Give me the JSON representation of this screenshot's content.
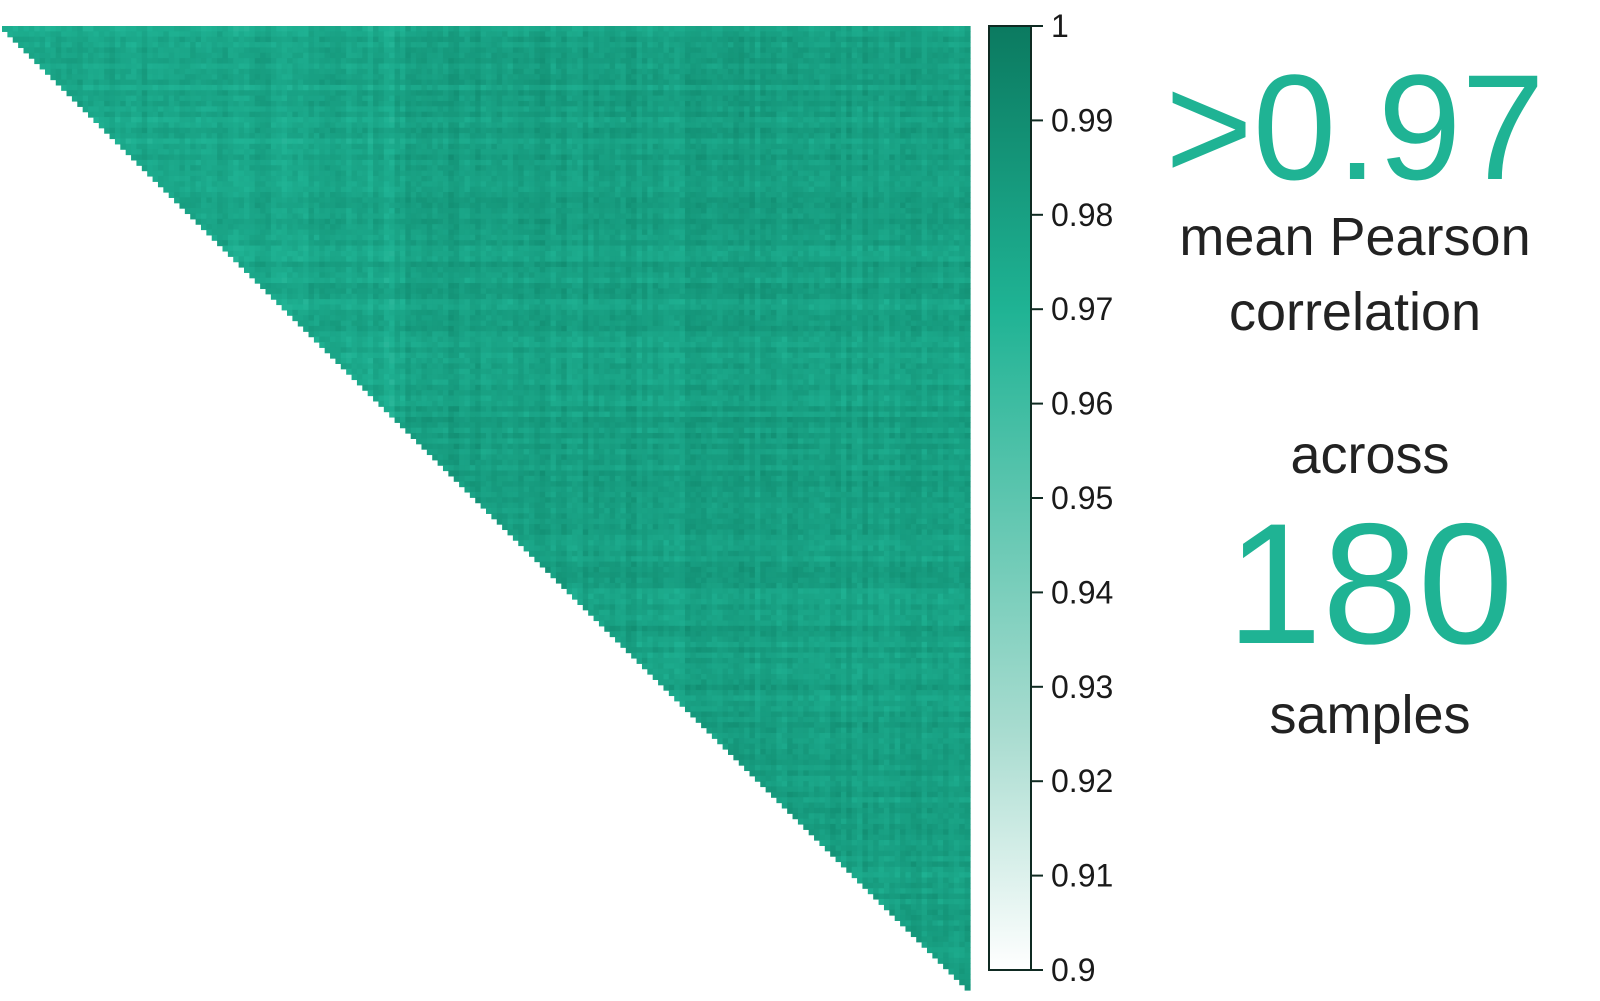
{
  "chart_data": {
    "type": "heatmap",
    "layout": "upper-triangle",
    "matrix_size": 180,
    "value_range": [
      0.9,
      1
    ],
    "typical_value_range": [
      0.96,
      0.99
    ],
    "colorbar": {
      "ticks": [
        "1",
        "0.99",
        "0.98",
        "0.97",
        "0.96",
        "0.95",
        "0.94",
        "0.93",
        "0.92",
        "0.91",
        "0.9"
      ],
      "color_low": "#ffffff",
      "color_mid": "#1fb394",
      "color_high": "#0b7a60"
    }
  },
  "stats": {
    "mean_value": ">0.97",
    "mean_label_line1": "mean Pearson",
    "mean_label_line2": "correlation",
    "across_label": "across",
    "sample_count": "180",
    "sample_label": "samples"
  },
  "colors": {
    "accent": "#1fb394",
    "text": "#222222"
  }
}
